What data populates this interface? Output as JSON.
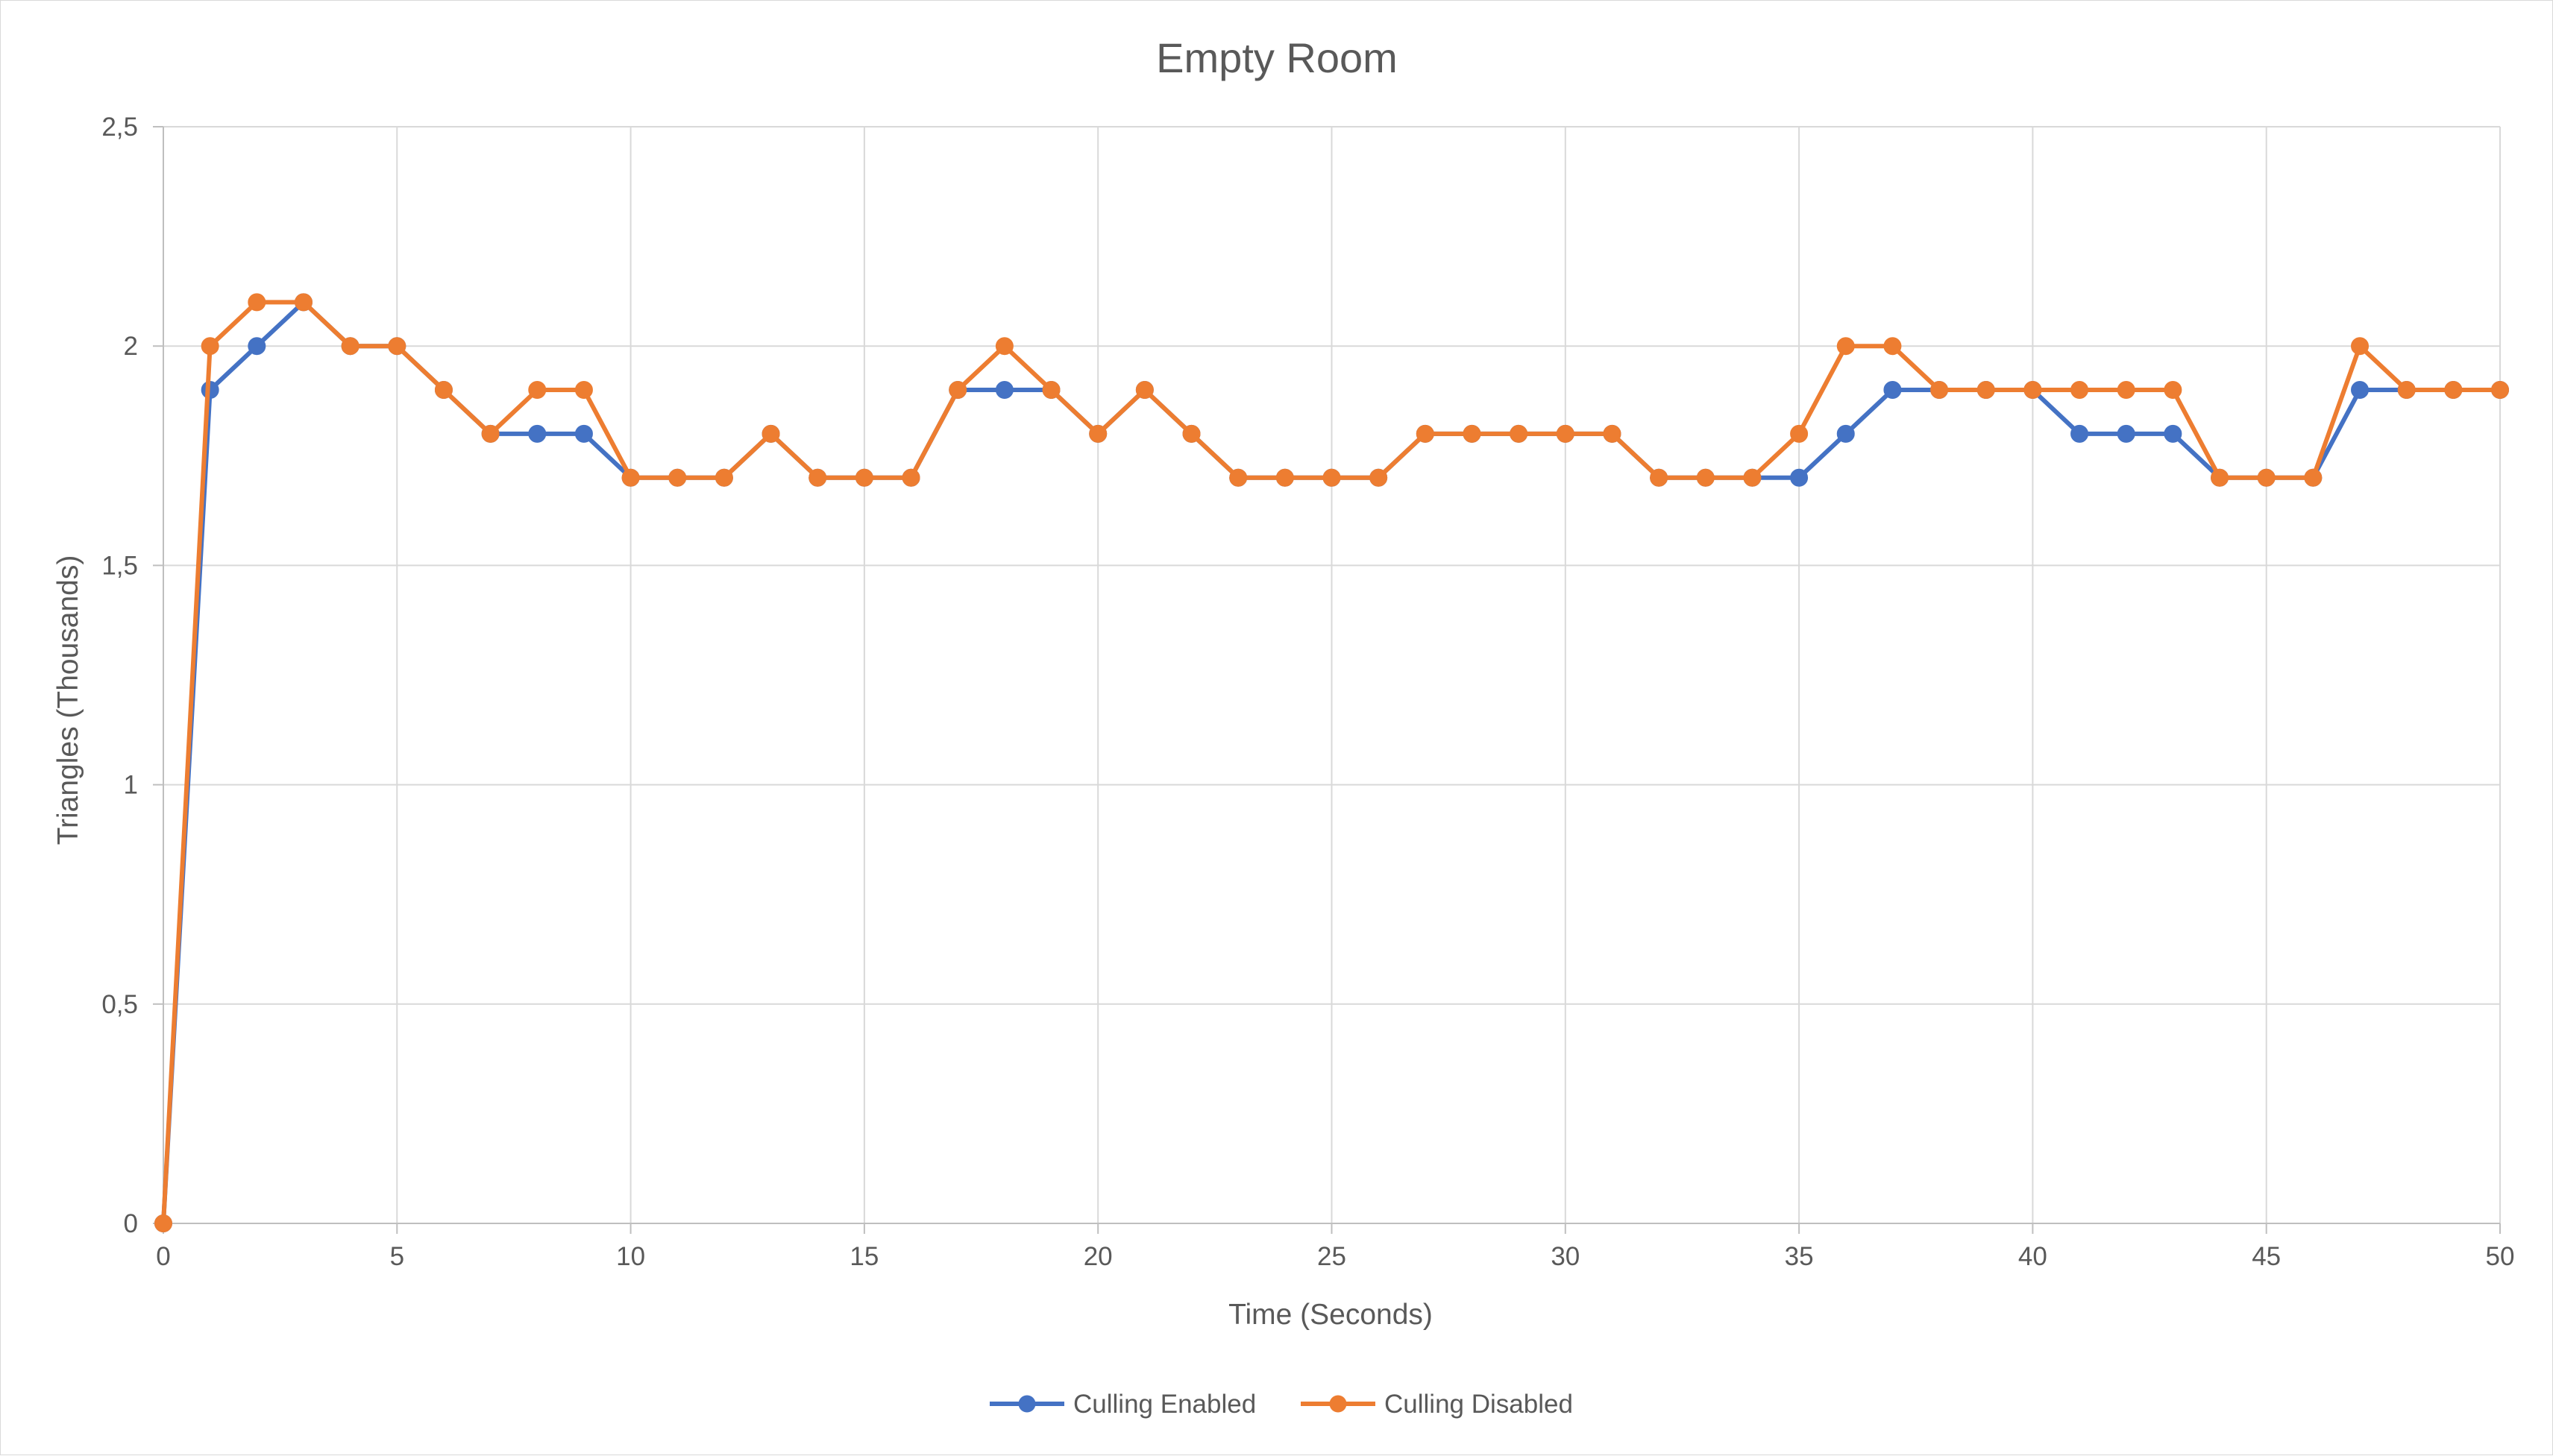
{
  "chart_data": {
    "type": "line",
    "title": "Empty Room",
    "xlabel": "Time (Seconds)",
    "ylabel": "Triangles (Thousands)",
    "xlim": [
      0,
      50
    ],
    "ylim": [
      0,
      2.5
    ],
    "x_ticks": [
      "0",
      "5",
      "10",
      "15",
      "20",
      "25",
      "30",
      "35",
      "40",
      "45",
      "50"
    ],
    "y_ticks": [
      "0",
      "0,5",
      "1",
      "1,5",
      "2",
      "2,5"
    ],
    "grid": true,
    "legend_position": "bottom",
    "x": [
      0,
      1,
      2,
      3,
      4,
      5,
      6,
      7,
      8,
      9,
      10,
      11,
      12,
      13,
      14,
      15,
      16,
      17,
      18,
      19,
      20,
      21,
      22,
      23,
      24,
      25,
      26,
      27,
      28,
      29,
      30,
      31,
      32,
      33,
      34,
      35,
      36,
      37,
      38,
      39,
      40,
      41,
      42,
      43,
      44,
      45,
      46,
      47,
      48,
      49,
      50
    ],
    "series": [
      {
        "name": "Culling Enabled",
        "color": "#4472c4",
        "values": [
          0,
          1.9,
          2.0,
          2.1,
          2.0,
          2.0,
          1.9,
          1.8,
          1.8,
          1.8,
          1.7,
          1.7,
          1.7,
          1.8,
          1.7,
          1.7,
          1.7,
          1.9,
          1.9,
          1.9,
          1.8,
          1.9,
          1.8,
          1.7,
          1.7,
          1.7,
          1.7,
          1.8,
          1.8,
          1.8,
          1.8,
          1.8,
          1.7,
          1.7,
          1.7,
          1.7,
          1.8,
          1.9,
          1.9,
          1.9,
          1.9,
          1.8,
          1.8,
          1.8,
          1.7,
          1.7,
          1.7,
          1.9,
          1.9,
          1.9,
          1.9
        ]
      },
      {
        "name": "Culling Disabled",
        "color": "#ed7d31",
        "values": [
          0,
          2.0,
          2.1,
          2.1,
          2.0,
          2.0,
          1.9,
          1.8,
          1.9,
          1.9,
          1.7,
          1.7,
          1.7,
          1.8,
          1.7,
          1.7,
          1.7,
          1.9,
          2.0,
          1.9,
          1.8,
          1.9,
          1.8,
          1.7,
          1.7,
          1.7,
          1.7,
          1.8,
          1.8,
          1.8,
          1.8,
          1.8,
          1.7,
          1.7,
          1.7,
          1.8,
          2.0,
          2.0,
          1.9,
          1.9,
          1.9,
          1.9,
          1.9,
          1.9,
          1.7,
          1.7,
          1.7,
          2.0,
          1.9,
          1.9,
          1.9
        ]
      }
    ]
  }
}
